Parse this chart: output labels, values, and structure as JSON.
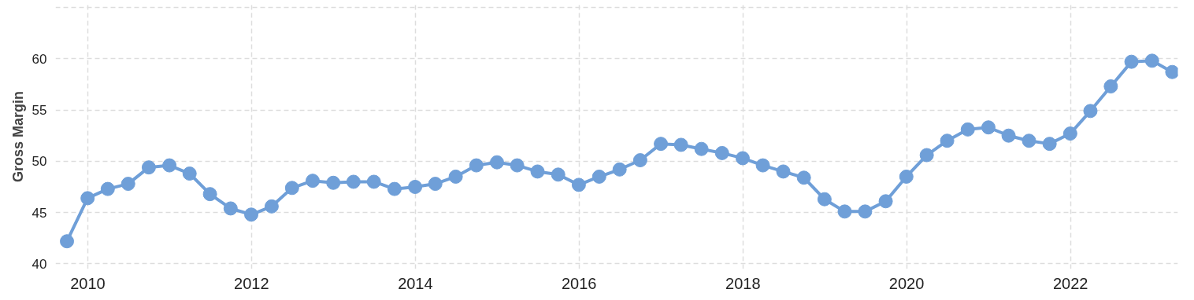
{
  "chart_data": {
    "type": "line",
    "ylabel": "Gross Margin",
    "x": [
      "2009-09-30",
      "2009-12-31",
      "2010-03-31",
      "2010-06-30",
      "2010-09-30",
      "2010-12-31",
      "2011-03-31",
      "2011-06-30",
      "2011-09-30",
      "2011-12-31",
      "2012-03-31",
      "2012-06-30",
      "2012-09-30",
      "2012-12-31",
      "2013-03-31",
      "2013-06-30",
      "2013-09-30",
      "2013-12-31",
      "2014-03-31",
      "2014-06-30",
      "2014-09-30",
      "2014-12-31",
      "2015-03-31",
      "2015-06-30",
      "2015-09-30",
      "2015-12-31",
      "2016-03-31",
      "2016-06-30",
      "2016-09-30",
      "2016-12-31",
      "2017-03-31",
      "2017-06-30",
      "2017-09-30",
      "2017-12-31",
      "2018-03-31",
      "2018-06-30",
      "2018-09-30",
      "2018-12-31",
      "2019-03-31",
      "2019-06-30",
      "2019-09-30",
      "2019-12-31",
      "2020-03-31",
      "2020-06-30",
      "2020-09-30",
      "2020-12-31",
      "2021-03-31",
      "2021-06-30",
      "2021-09-30",
      "2021-12-31",
      "2022-03-31",
      "2022-06-30",
      "2022-09-30",
      "2022-12-31",
      "2023-03-31"
    ],
    "series": [
      {
        "color": "#6f9fd8",
        "values": [
          42.2,
          46.4,
          47.3,
          47.8,
          49.4,
          49.6,
          48.8,
          46.8,
          45.4,
          44.8,
          45.6,
          47.4,
          48.1,
          47.9,
          48.0,
          48.0,
          47.3,
          47.5,
          47.8,
          48.5,
          49.6,
          49.9,
          49.6,
          49.0,
          48.7,
          47.7,
          48.5,
          49.2,
          50.1,
          51.7,
          51.6,
          51.2,
          50.8,
          50.3,
          49.6,
          49.0,
          48.4,
          46.3,
          45.1,
          45.1,
          46.1,
          48.5,
          50.6,
          52.0,
          53.1,
          53.3,
          52.5,
          52.0,
          51.7,
          52.7,
          54.9,
          57.3,
          59.7,
          59.8,
          58.7
        ]
      }
    ],
    "xlim": [
      "2009-08-10",
      "2023-04-25"
    ],
    "xticks": [
      "2010",
      "2012",
      "2014",
      "2016",
      "2018",
      "2020",
      "2022"
    ],
    "ylim": [
      39.5,
      65.3
    ],
    "yticks": [
      40,
      45,
      50,
      55,
      60,
      {
        "value": 65,
        "label": null
      }
    ],
    "grid": true,
    "marker": "circle",
    "line_style": "solid"
  }
}
